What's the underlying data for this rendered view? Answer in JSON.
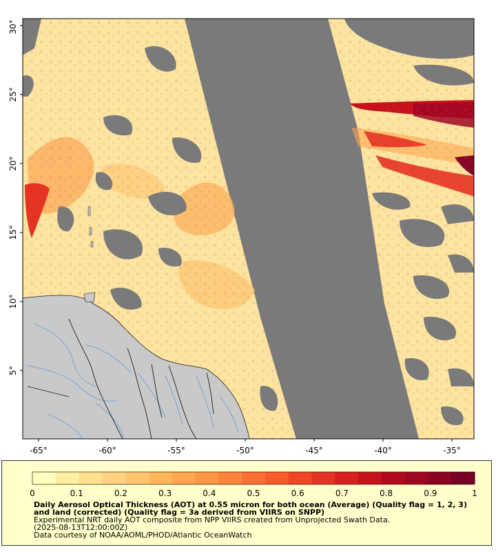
{
  "map": {
    "lon_ticks": [
      "-65°",
      "-60°",
      "-55°",
      "-50°",
      "-45°",
      "-40°",
      "-35°"
    ],
    "lat_ticks": [
      "5°",
      "10°",
      "15°",
      "20°",
      "25°",
      "30°"
    ],
    "extent": {
      "lon": [
        -66,
        -33.5
      ],
      "lat": [
        0.5,
        31
      ]
    },
    "colors": {
      "nodata": "#7a7a7a",
      "land": "#c9c9c9",
      "rivers": "#6f9fd8",
      "borders": "#1a1a1a"
    }
  },
  "colorbar": {
    "ticks": [
      "0",
      "0.1",
      "0.2",
      "0.3",
      "0.4",
      "0.5",
      "0.6",
      "0.7",
      "0.8",
      "0.9",
      "1"
    ],
    "range": [
      0,
      1
    ],
    "colors": [
      "#ffffbe",
      "#ffeda0",
      "#fee08f",
      "#fed280",
      "#fec46e",
      "#feb65d",
      "#fda64f",
      "#fd9644",
      "#fc843c",
      "#fa7034",
      "#f85a2c",
      "#f04626",
      "#e63222",
      "#d8201f",
      "#c7121e",
      "#b40a20",
      "#a00622",
      "#8a0424",
      "#760226"
    ]
  },
  "legend": {
    "title": "Daily Aerosol Optical Thickness (AOT) at 0.55 micron for both ocean (Average) (Quality flag = 1, 2, 3) and land (corrected) (Quality flag = 3a derived from VIIRS on SNPP)",
    "line1": "Experimental NRT daily AOT composite from NPP VIIRS created from Unprojected Swath Data.",
    "line2": "(2025-08-13T12:00:00Z)",
    "line3": "Data courtesy of NOAA/AOML/PHOD/Atlantic OceanWatch"
  }
}
